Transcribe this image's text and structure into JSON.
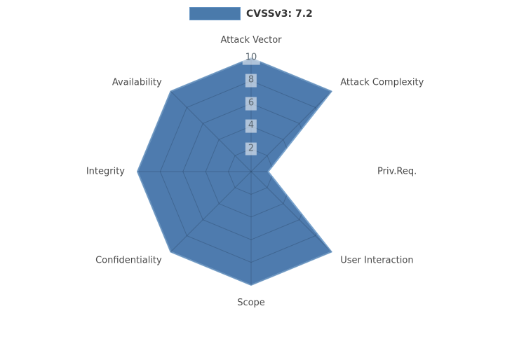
{
  "chart_data": {
    "type": "radar",
    "title": "",
    "categories": [
      "Attack Vector",
      "Attack Complexity",
      "Priv.Req.",
      "User Interaction",
      "Scope",
      "Confidentiality",
      "Integrity",
      "Availability"
    ],
    "series": [
      {
        "name": "CVSSv3: 7.2",
        "values": [
          10,
          10,
          1.5,
          10,
          10,
          10,
          10,
          10
        ]
      }
    ],
    "radial_ticks": [
      2,
      4,
      6,
      8,
      10
    ],
    "rlim": [
      0,
      10
    ],
    "angle_start_deg": 90,
    "direction": "clockwise",
    "legend_position": "top-center",
    "grid": "spider-web, visible inside fill only",
    "colors": {
      "fill": "#2f64a0",
      "fill_opacity": 0.85,
      "edge": "#79a3cd",
      "grid_overlay": "rgba(30,50,75,0.28)",
      "axis_label": "#4a4a4a",
      "tick_text": "#5b6770",
      "tick_bg": "rgba(255,255,255,0.55)",
      "legend_fill": "#4a7aab",
      "legend_edge": "#6393c4",
      "legend_text": "#333333"
    }
  }
}
